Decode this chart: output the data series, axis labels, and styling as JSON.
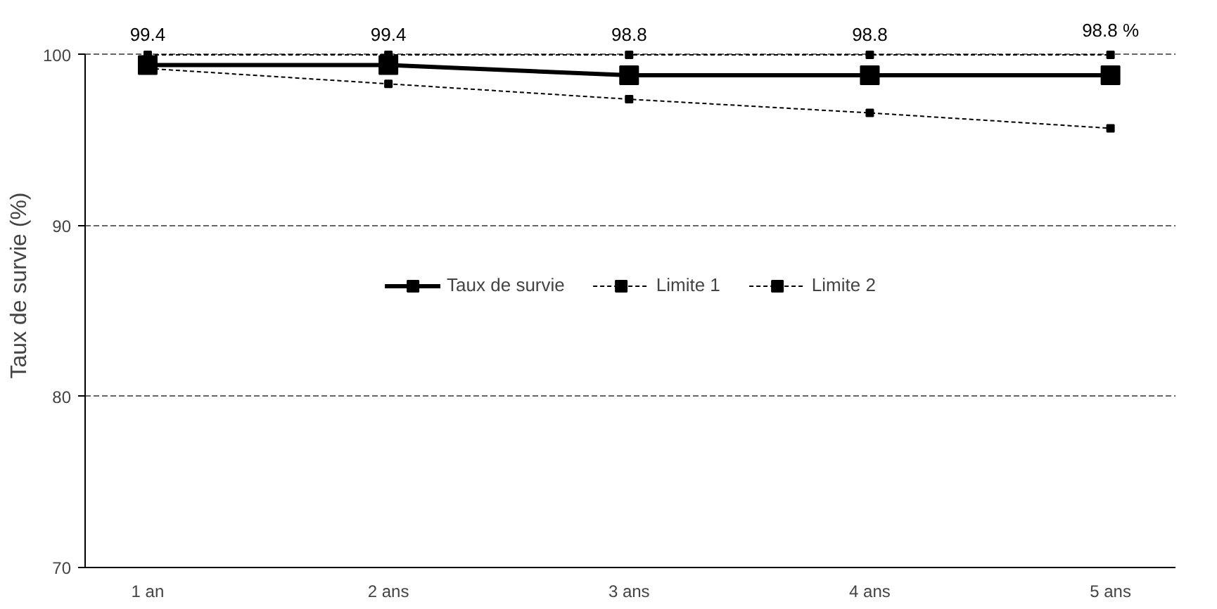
{
  "chart_data": {
    "type": "line",
    "ylabel": "Taux de survie (%)",
    "categories": [
      "1 an",
      "2 ans",
      "3 ans",
      "4 ans",
      "5 ans"
    ],
    "series": [
      {
        "name": "Taux de survie",
        "color": "#000000",
        "values": [
          99.4,
          99.4,
          98.8,
          98.8,
          98.8
        ],
        "line_style": "solid",
        "value_labels": [
          "99.4",
          "99.4",
          "98.8",
          "98.8",
          "98.8 %"
        ]
      },
      {
        "name": "Limite 1",
        "color": "#000000",
        "values": [
          99.2,
          98.3,
          97.4,
          96.6,
          95.7
        ],
        "line_style": "dashed"
      },
      {
        "name": "Limite 2",
        "color": "#000000",
        "values": [
          100,
          100,
          100,
          100,
          100
        ],
        "line_style": "dashed"
      }
    ],
    "ylim": [
      70,
      100
    ],
    "yticks": [
      70,
      80,
      90,
      100
    ],
    "grid": "y",
    "legend": "center",
    "marker": "square"
  }
}
